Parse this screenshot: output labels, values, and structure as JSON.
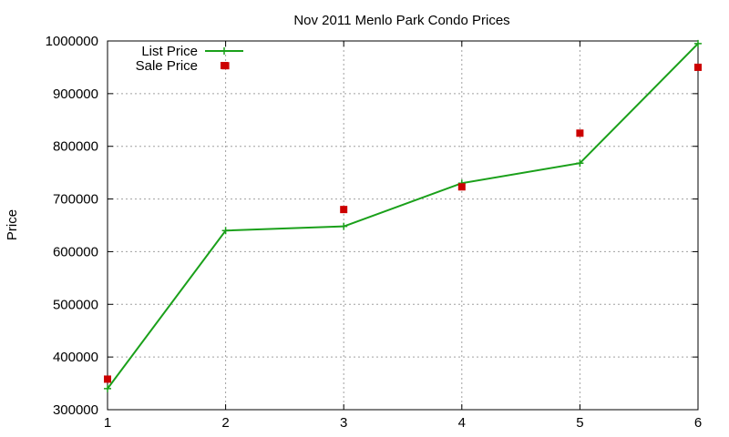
{
  "chart_data": {
    "type": "line",
    "title": "Nov 2011 Menlo Park Condo Prices",
    "xlabel": "",
    "ylabel": "Price",
    "x": [
      1,
      2,
      3,
      4,
      5,
      6
    ],
    "xlim": [
      1,
      6
    ],
    "ylim": [
      300000,
      1000000
    ],
    "xticks": [
      "1",
      "2",
      "3",
      "4",
      "5",
      "6"
    ],
    "yticks": [
      "300000",
      "400000",
      "500000",
      "600000",
      "700000",
      "800000",
      "900000",
      "1000000"
    ],
    "ytick_values": [
      300000,
      400000,
      500000,
      600000,
      700000,
      800000,
      900000,
      1000000
    ],
    "grid": true,
    "legend_position": "top-left",
    "series": [
      {
        "name": "List Price",
        "style": "line-with-plus-markers",
        "color": "#1aa01a",
        "values": [
          340000,
          640000,
          648000,
          730000,
          768000,
          995000
        ]
      },
      {
        "name": "Sale Price",
        "style": "square-markers",
        "color": "#cc0000",
        "values": [
          358000,
          953000,
          680000,
          723000,
          825000,
          950000
        ]
      }
    ]
  }
}
